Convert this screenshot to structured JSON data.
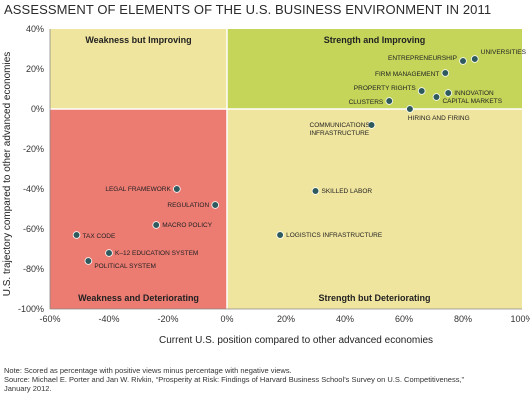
{
  "chart_data": {
    "type": "scatter",
    "title": "ASSESSMENT OF ELEMENTS OF THE U.S. BUSINESS ENVIRONMENT IN 2011",
    "xlabel": "Current U.S. position compared to other advanced economies",
    "ylabel": "U.S. trajectory compared to other advanced economies",
    "xlim": [
      -60,
      100
    ],
    "ylim": [
      -100,
      40
    ],
    "x_ticks": [
      "-60%",
      "-40%",
      "-20%",
      "0%",
      "20%",
      "40%",
      "60%",
      "80%",
      "100%"
    ],
    "y_ticks": [
      "40%",
      "20%",
      "0%",
      "-20%",
      "-40%",
      "-60%",
      "-80%",
      "-100%"
    ],
    "x_tick_values": [
      -60,
      -40,
      -20,
      0,
      20,
      40,
      60,
      80,
      100
    ],
    "y_tick_values": [
      40,
      20,
      0,
      -20,
      -40,
      -60,
      -80,
      -100
    ],
    "quadrants": [
      {
        "label": "Weakness but Improving",
        "color": "#f0e59e"
      },
      {
        "label": "Strength and Improving",
        "color": "#c4d55a"
      },
      {
        "label": "Weakness and Deteriorating",
        "color": "#ec7b72"
      },
      {
        "label": "Strength but Deteriorating",
        "color": "#f0e59e"
      }
    ],
    "point_color": "#2e5a5e",
    "points": [
      {
        "label": "UNIVERSITIES",
        "x": 84,
        "y": 25
      },
      {
        "label": "ENTREPRENEURSHIP",
        "x": 80,
        "y": 24
      },
      {
        "label": "FIRM MANAGEMENT",
        "x": 74,
        "y": 18
      },
      {
        "label": "PROPERTY RIGHTS",
        "x": 66,
        "y": 9
      },
      {
        "label": "INNOVATION",
        "x": 75,
        "y": 8
      },
      {
        "label": "CLUSTERS",
        "x": 55,
        "y": 4
      },
      {
        "label": "CAPITAL MARKETS",
        "x": 71,
        "y": 6
      },
      {
        "label": "HIRING AND FIRING",
        "x": 62,
        "y": 0
      },
      {
        "label": "COMMUNICATIONS INFRASTRUCTURE",
        "x": 49,
        "y": -8
      },
      {
        "label": "SKILLED LABOR",
        "x": 30,
        "y": -41
      },
      {
        "label": "LOGISTICS INFRASTRUCTURE",
        "x": 18,
        "y": -63
      },
      {
        "label": "LEGAL FRAMEWORK",
        "x": -17,
        "y": -40
      },
      {
        "label": "REGULATION",
        "x": -4,
        "y": -48
      },
      {
        "label": "MACRO POLICY",
        "x": -24,
        "y": -58
      },
      {
        "label": "TAX CODE",
        "x": -51,
        "y": -63
      },
      {
        "label": "K–12 EDUCATION SYSTEM",
        "x": -40,
        "y": -72
      },
      {
        "label": "POLITICAL SYSTEM",
        "x": -47,
        "y": -76
      }
    ]
  },
  "footnotes": {
    "note": "Note: Scored as percentage with positive views minus percentage with negative views.",
    "source_line1": "Source: Michael E. Porter and Jan W. Rivkin, “Prosperity at Risk: Findings of Harvard Business School’s Survey on U.S. Competitiveness,”",
    "source_line2": "January 2012."
  }
}
